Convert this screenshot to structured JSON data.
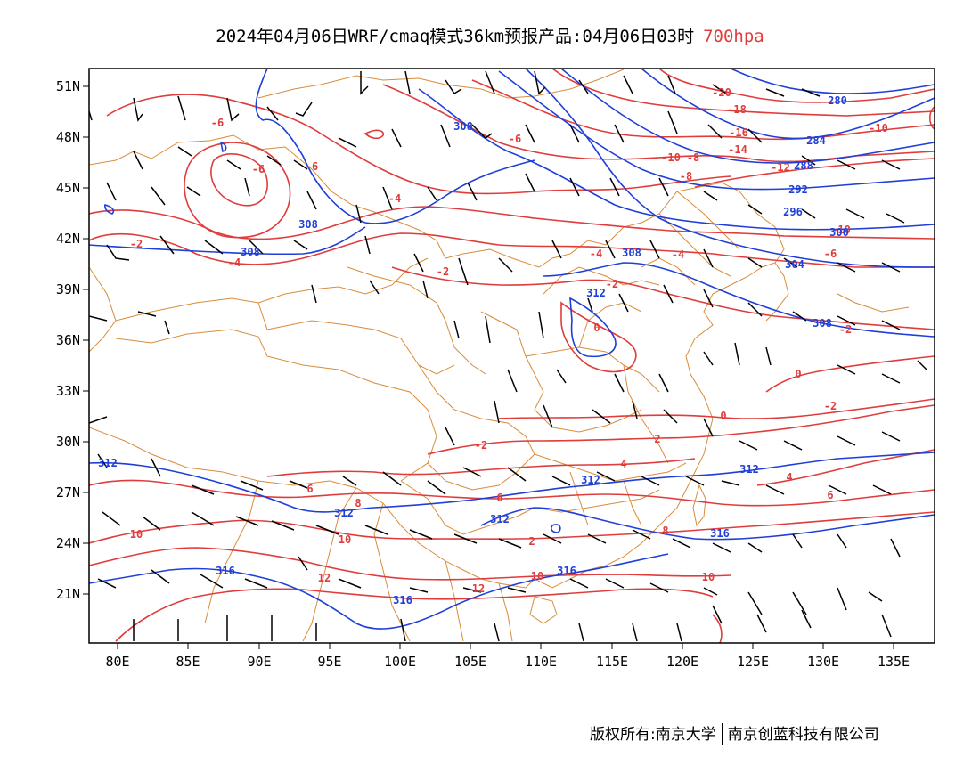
{
  "title": {
    "main": "2024年04月06日WRF/cmaq模式36km预报产品:04月06日03时",
    "level": "700hpa"
  },
  "copyright": {
    "owner": "版权所有:南京大学",
    "company": "南京创蓝科技有限公司"
  },
  "colors": {
    "temperature": "#e03c3c",
    "geopotential": "#1f3fd8",
    "border": "#d98c3a",
    "wind": "#000000"
  },
  "axes": {
    "lon_labels": [
      "80E",
      "85E",
      "90E",
      "95E",
      "100E",
      "105E",
      "110E",
      "115E",
      "120E",
      "125E",
      "130E",
      "135E"
    ],
    "lat_labels": [
      "51N",
      "48N",
      "45N",
      "42N",
      "39N",
      "36N",
      "33N",
      "30N",
      "27N",
      "24N",
      "21N"
    ]
  },
  "temperature_labels": [
    "-20",
    "-18",
    "-16",
    "-14",
    "-12",
    "-10",
    "-10",
    "-8",
    "-8",
    "-6",
    "-6",
    "-6",
    "-6",
    "-6",
    "-4",
    "-4",
    "-4",
    "-4",
    "-2",
    "-2",
    "-2",
    "-2",
    "0",
    "0",
    "0",
    "-2",
    "-2",
    "2",
    "2",
    "4",
    "4",
    "6",
    "6",
    "6",
    "8",
    "8",
    "10",
    "10",
    "10",
    "12",
    "12",
    "-10"
  ],
  "height_labels": [
    "280",
    "284",
    "288",
    "292",
    "296",
    "300",
    "304",
    "308",
    "308",
    "308",
    "308",
    "308",
    "312",
    "312",
    "312",
    "312",
    "312",
    "316",
    "316",
    "316",
    "316"
  ]
}
